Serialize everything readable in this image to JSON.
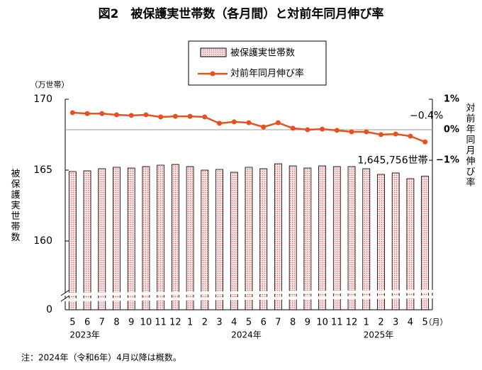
{
  "chart_data": {
    "type": "bar-line",
    "title": "図2　被保護実世帯数（各月間）と対前年同月伸び率",
    "y_label": "被保護実世帯数",
    "y_unit": "（万世帯）",
    "y2_label": "対前年同月伸び率",
    "x_unit": "（月）",
    "note": "注：2024年（令和6年）4月以降は概数。",
    "categories": [
      "5",
      "6",
      "7",
      "8",
      "9",
      "10",
      "11",
      "12",
      "1",
      "2",
      "3",
      "4",
      "5",
      "6",
      "7",
      "8",
      "9",
      "10",
      "11",
      "12",
      "1",
      "2",
      "3",
      "4",
      "5"
    ],
    "category_years": [
      "2023年",
      null,
      null,
      null,
      null,
      null,
      null,
      null,
      null,
      null,
      null,
      "2024年",
      null,
      null,
      null,
      null,
      null,
      null,
      null,
      null,
      "2025年",
      null,
      null,
      null,
      null
    ],
    "series": [
      {
        "name": "被保護実世帯数",
        "type": "bar",
        "color": "#f9d9d9",
        "edge_color": "#000000",
        "values": [
          164.9,
          164.95,
          165.1,
          165.2,
          165.15,
          165.25,
          165.35,
          165.4,
          165.25,
          165.0,
          165.05,
          164.85,
          165.2,
          165.1,
          165.45,
          165.3,
          165.15,
          165.3,
          165.25,
          165.25,
          165.1,
          164.7,
          164.8,
          164.4,
          164.5756
        ],
        "value_labels": [
          null,
          null,
          null,
          null,
          null,
          null,
          null,
          null,
          null,
          null,
          null,
          null,
          null,
          null,
          null,
          null,
          null,
          null,
          null,
          null,
          null,
          null,
          null,
          null,
          "1,645,756世帯"
        ]
      },
      {
        "name": "対前年同月伸び率",
        "type": "line",
        "axis": "y2",
        "color": "#e8501e",
        "values": [
          0.56,
          0.53,
          0.53,
          0.49,
          0.47,
          0.49,
          0.42,
          0.44,
          0.44,
          0.42,
          0.21,
          0.26,
          0.23,
          0.09,
          0.23,
          0.05,
          0.0,
          0.02,
          -0.02,
          -0.07,
          -0.07,
          -0.16,
          -0.14,
          -0.21,
          -0.4
        ],
        "value_labels": [
          null,
          null,
          null,
          null,
          null,
          null,
          null,
          null,
          null,
          null,
          null,
          null,
          null,
          null,
          null,
          null,
          null,
          null,
          null,
          null,
          null,
          null,
          null,
          null,
          "−0.4%"
        ]
      }
    ],
    "ylim": [
      0,
      170
    ],
    "yticks": [
      0,
      160,
      165,
      170
    ],
    "y2lim": [
      -5.9,
      1
    ],
    "y2ticks": [
      {
        "value": 1,
        "label": "1%"
      },
      {
        "value": 0,
        "label": "0%"
      },
      {
        "value": -1,
        "label": "−1%"
      }
    ],
    "y2_reference_line": 0
  }
}
